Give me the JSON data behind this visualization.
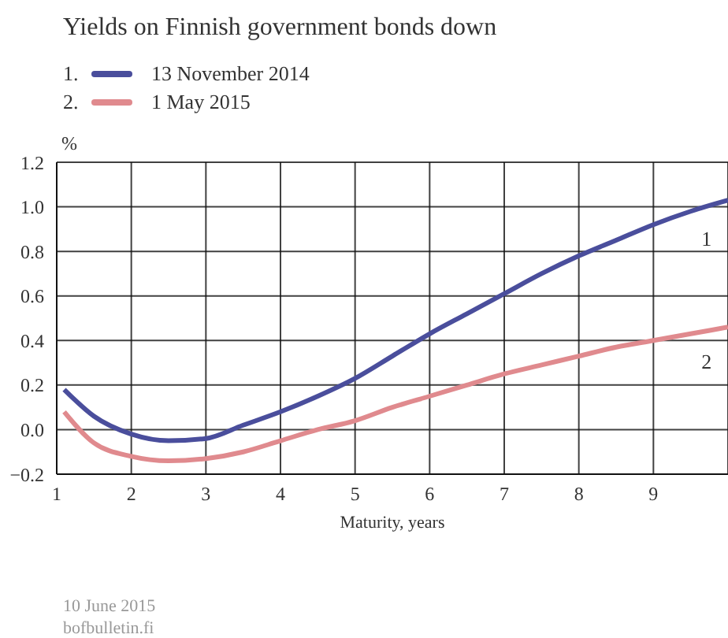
{
  "chart_data": {
    "type": "line",
    "title": "Yields on Finnish government bonds down",
    "xlabel": "Maturity, years",
    "ylabel": "%",
    "x": [
      1.1,
      1.5,
      2,
      2.5,
      3,
      3.5,
      4,
      4.5,
      5,
      5.5,
      6,
      6.5,
      7,
      7.5,
      8,
      8.5,
      9,
      9.5,
      10
    ],
    "series": [
      {
        "name": "13 November 2014",
        "color": "#4a4e9c",
        "values": [
          0.18,
          0.06,
          -0.02,
          -0.05,
          -0.04,
          0.02,
          0.08,
          0.15,
          0.23,
          0.33,
          0.43,
          0.52,
          0.61,
          0.7,
          0.78,
          0.85,
          0.92,
          0.98,
          1.03
        ]
      },
      {
        "name": "1 May 2015",
        "color": "#e08a8e",
        "values": [
          0.08,
          -0.06,
          -0.12,
          -0.14,
          -0.13,
          -0.1,
          -0.05,
          0.0,
          0.04,
          0.1,
          0.15,
          0.2,
          0.25,
          0.29,
          0.33,
          0.37,
          0.4,
          0.43,
          0.46
        ]
      }
    ],
    "xlim": [
      1,
      10
    ],
    "xticks": [
      1,
      2,
      3,
      4,
      5,
      6,
      7,
      8,
      9
    ],
    "ylim": [
      -0.2,
      1.2
    ],
    "yticks": [
      -0.2,
      {
        "value": 0,
        "label": "0.0"
      },
      0.2,
      0.4,
      0.6,
      0.8,
      {
        "value": 1,
        "label": "1.0"
      },
      1.2
    ],
    "grid": true,
    "legend": "top left",
    "annotations": [
      "1.",
      "2.",
      "1",
      "2",
      "10 June 2015",
      "bofbulletin.fi"
    ]
  }
}
